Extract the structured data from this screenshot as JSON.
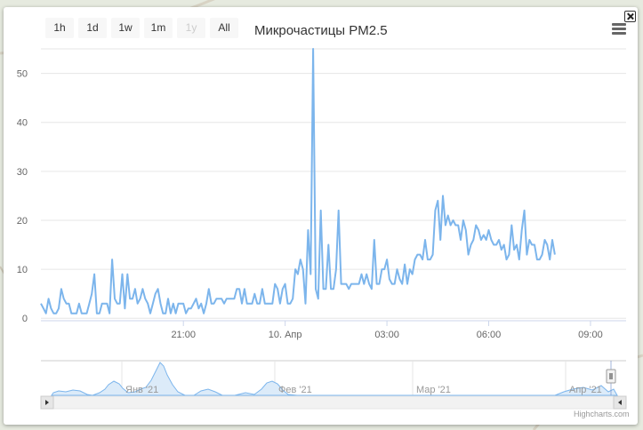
{
  "range_selector": {
    "buttons": [
      {
        "label": "1h",
        "enabled": true
      },
      {
        "label": "1d",
        "enabled": true
      },
      {
        "label": "1w",
        "enabled": true
      },
      {
        "label": "1m",
        "enabled": true
      },
      {
        "label": "1y",
        "enabled": false
      },
      {
        "label": "All",
        "enabled": true
      }
    ]
  },
  "credits": "Highcharts.com",
  "colors": {
    "series": "#7cb5ec",
    "navigator_fill": "#dcebf9"
  },
  "icons": {
    "close": "close-icon",
    "menu": "hamburger-menu-icon"
  },
  "chart_data": {
    "type": "line",
    "title": "Микрочастицы PM2.5",
    "ylim": [
      0,
      55
    ],
    "yticks": [
      0,
      10,
      20,
      30,
      40,
      50
    ],
    "x_ticks": [
      {
        "value": 7.0,
        "label": "21:00"
      },
      {
        "value": 12.0,
        "label": "10. Апр"
      },
      {
        "value": 17.0,
        "label": "03:00"
      },
      {
        "value": 22.0,
        "label": "06:00"
      },
      {
        "value": 27.0,
        "label": "09:00"
      }
    ],
    "xlim": [
      0,
      28.75
    ],
    "x_step": 0.125,
    "grid": true,
    "series": [
      {
        "values": [
          3,
          2,
          1,
          4,
          2,
          1,
          1,
          2,
          6,
          4,
          3,
          3,
          1,
          1,
          1,
          3,
          1,
          1,
          1,
          3,
          5,
          9,
          1,
          1,
          3,
          3,
          3,
          1,
          12,
          4,
          3,
          3,
          9,
          2,
          9,
          4,
          4,
          6,
          3,
          4,
          6,
          4,
          3,
          1,
          3,
          5,
          6,
          3,
          1,
          1,
          4,
          1,
          3,
          1,
          3,
          3,
          3,
          1,
          2,
          2,
          3,
          4,
          2,
          3,
          1,
          3,
          6,
          3,
          3,
          4,
          4,
          4,
          3,
          4,
          4,
          4,
          4,
          6,
          6,
          3,
          6,
          3,
          3,
          3,
          5,
          3,
          3,
          6,
          3,
          3,
          3,
          3,
          7,
          6,
          3,
          6,
          7,
          3,
          3,
          4,
          10,
          9,
          12,
          10,
          3,
          18,
          9,
          55,
          6,
          4,
          22,
          6,
          6,
          15,
          6,
          6,
          10,
          22,
          7,
          7,
          7,
          6,
          7,
          7,
          7,
          7,
          9,
          7,
          9,
          7,
          6,
          16,
          7,
          7,
          10,
          10,
          12,
          8,
          7,
          7,
          10,
          8,
          7,
          11,
          7,
          10,
          9,
          12,
          13,
          13,
          12,
          16,
          12,
          12,
          13,
          22,
          24,
          16,
          25,
          19,
          21,
          19,
          20,
          19,
          19,
          16,
          20,
          18,
          13,
          15,
          16,
          19,
          18,
          16,
          17,
          16,
          18,
          16,
          15,
          15,
          16,
          14,
          15,
          12,
          13,
          19,
          14,
          15,
          12,
          18,
          22,
          13,
          16,
          15,
          15,
          12,
          12,
          13,
          16,
          15,
          12,
          16,
          13
        ]
      }
    ],
    "navigator": {
      "x_labels": [
        "Янв '21",
        "Фев '21",
        "Мар '21",
        "Апр '21"
      ]
    }
  }
}
